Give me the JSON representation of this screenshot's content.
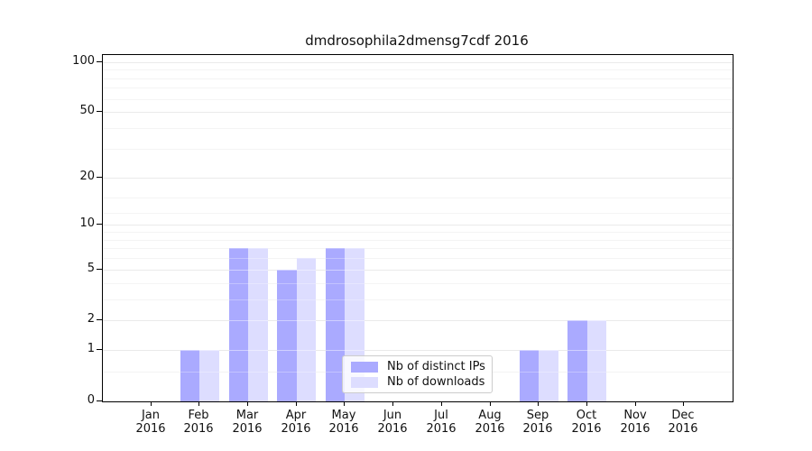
{
  "title": "dmdrosophila2dmensg7cdf 2016",
  "chart_data": {
    "type": "bar",
    "title": "dmdrosophila2dmensg7cdf 2016",
    "categories": [
      "Jan",
      "Feb",
      "Mar",
      "Apr",
      "May",
      "Jun",
      "Jul",
      "Aug",
      "Sep",
      "Oct",
      "Nov",
      "Dec"
    ],
    "year": "2016",
    "series": [
      {
        "name": "Nb of distinct IPs",
        "color": "#aaaaff",
        "values": [
          0,
          1,
          7,
          5,
          7,
          0,
          0,
          0,
          1,
          2,
          0,
          0
        ]
      },
      {
        "name": "Nb of downloads",
        "color": "#ddddff",
        "values": [
          0,
          1,
          7,
          6,
          7,
          0,
          0,
          0,
          1,
          2,
          0,
          0
        ]
      }
    ],
    "yscale": "log1p",
    "ylim": [
      0,
      110
    ],
    "y_ticks": [
      0,
      1,
      2,
      5,
      10,
      20,
      50,
      100
    ],
    "y_minor_ticks": [
      0.5,
      3,
      4,
      6,
      7,
      8,
      9,
      12,
      15,
      30,
      40,
      60,
      70,
      80,
      90
    ],
    "grid": true,
    "legend_position": "lower center",
    "colors": {
      "spine": "#000000",
      "grid_major": "#d9d9d9",
      "grid_minor": "#efefef",
      "text": "#111111"
    }
  }
}
